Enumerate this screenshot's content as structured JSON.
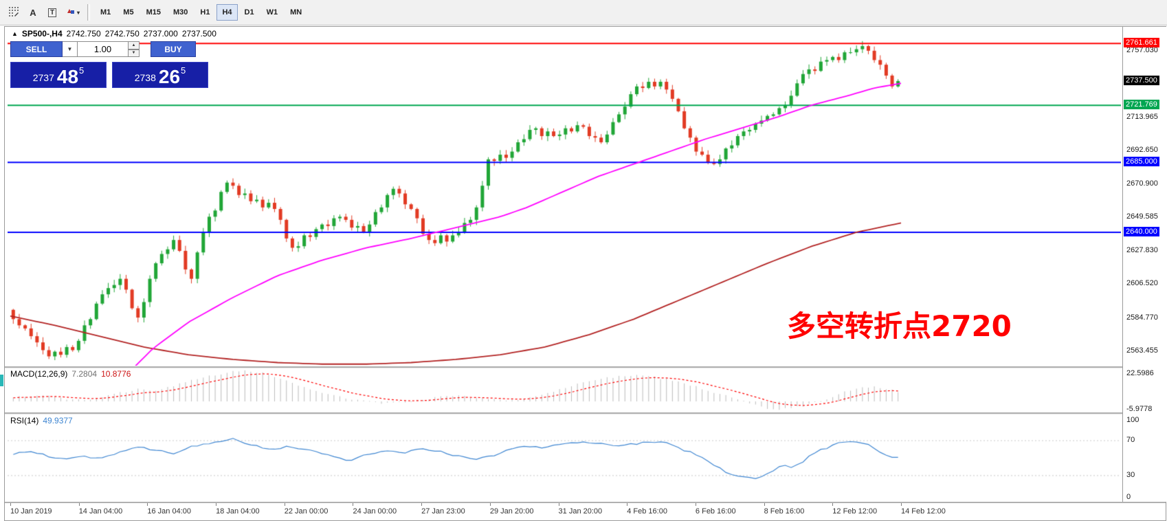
{
  "toolbar": {
    "text_tool_label": "A",
    "label_tool_label": "T",
    "timeframes": [
      "M1",
      "M5",
      "M15",
      "M30",
      "H1",
      "H4",
      "D1",
      "W1",
      "MN"
    ],
    "active_timeframe": "H4"
  },
  "icons": {
    "symbol_marker": "▲",
    "caret_down": "▼",
    "caret_up": "▲",
    "arrows_caret": "▾"
  },
  "symbol_bar": {
    "symbol": "SP500-,H4",
    "open": "2742.750",
    "high": "2742.750",
    "low": "2737.000",
    "close": "2737.500"
  },
  "trade_panel": {
    "sell_label": "SELL",
    "buy_label": "BUY",
    "lot_value": "1.00",
    "bid": {
      "prefix": "2737",
      "big": "48",
      "sup": "5"
    },
    "ask": {
      "prefix": "2738",
      "big": "26",
      "sup": "5"
    }
  },
  "annotation": {
    "text": "多空转折点2720",
    "color": "#ff0000"
  },
  "colors": {
    "candle_up": "#21a637",
    "candle_down": "#e23b24",
    "macd_hist": "#bbbbbb",
    "buy_sell_button": "#3f62cf",
    "price_box": "#171fa6"
  },
  "chart_data": {
    "type": "candlestick",
    "symbol": "SP500-",
    "timeframe": "H4",
    "price_range": [
      2554,
      2772
    ],
    "first_open": 2590,
    "closes": [
      2584,
      2580,
      2578,
      2573,
      2569,
      2564,
      2560,
      2563,
      2561,
      2566,
      2564,
      2570,
      2580,
      2584,
      2594,
      2600,
      2604,
      2606,
      2610,
      2603,
      2591,
      2585,
      2595,
      2610,
      2620,
      2626,
      2629,
      2635,
      2628,
      2616,
      2610,
      2627,
      2640,
      2650,
      2654,
      2666,
      2672,
      2670,
      2664,
      2665,
      2660,
      2661,
      2656,
      2659,
      2655,
      2648,
      2636,
      2630,
      2631,
      2638,
      2637,
      2642,
      2645,
      2644,
      2649,
      2650,
      2648,
      2643,
      2644,
      2640,
      2645,
      2653,
      2656,
      2664,
      2668,
      2665,
      2658,
      2655,
      2649,
      2639,
      2635,
      2633,
      2638,
      2634,
      2638,
      2640,
      2646,
      2648,
      2656,
      2670,
      2687,
      2686,
      2690,
      2688,
      2692,
      2698,
      2700,
      2706,
      2707,
      2702,
      2705,
      2702,
      2703,
      2707,
      2705,
      2709,
      2708,
      2702,
      2701,
      2698,
      2703,
      2711,
      2716,
      2721,
      2729,
      2734,
      2733,
      2737,
      2734,
      2737,
      2732,
      2726,
      2718,
      2707,
      2701,
      2692,
      2690,
      2685,
      2684,
      2687,
      2694,
      2696,
      2702,
      2705,
      2706,
      2710,
      2712,
      2715,
      2716,
      2720,
      2722,
      2728,
      2736,
      2742,
      2745,
      2744,
      2750,
      2751,
      2753,
      2751,
      2756,
      2756,
      2758,
      2760,
      2757,
      2751,
      2748,
      2741,
      2734,
      2737.5
    ],
    "price_axis_ticks": [
      "2757.030",
      "2713.965",
      "2692.650",
      "2670.900",
      "2649.585",
      "2627.830",
      "2606.520",
      "2584.770",
      "2563.455"
    ],
    "hlines": [
      {
        "value": 2761.661,
        "label": "2761.661",
        "color": "#ff0000"
      },
      {
        "value": 2721.769,
        "label": "2721.769",
        "color": "#00a651"
      },
      {
        "value": 2685.0,
        "label": "2685.000",
        "color": "#0000ff"
      },
      {
        "value": 2640.0,
        "label": "2640.000",
        "color": "#0000ff"
      }
    ],
    "current_price": {
      "value": 2737.5,
      "label": "2737.500",
      "color": "#000000"
    },
    "ma_fast": {
      "color": "#ff00ff",
      "points": [
        [
          0.12,
          2542
        ],
        [
          0.16,
          2565
        ],
        [
          0.2,
          2582
        ],
        [
          0.25,
          2598
        ],
        [
          0.3,
          2612
        ],
        [
          0.35,
          2622
        ],
        [
          0.4,
          2630
        ],
        [
          0.45,
          2636
        ],
        [
          0.5,
          2643
        ],
        [
          0.55,
          2650
        ],
        [
          0.58,
          2656
        ],
        [
          0.62,
          2666
        ],
        [
          0.66,
          2676
        ],
        [
          0.7,
          2684
        ],
        [
          0.74,
          2692
        ],
        [
          0.78,
          2700
        ],
        [
          0.82,
          2707
        ],
        [
          0.86,
          2714
        ],
        [
          0.9,
          2722
        ],
        [
          0.94,
          2728
        ],
        [
          0.97,
          2733
        ],
        [
          1,
          2736
        ]
      ]
    },
    "ma_slow": {
      "color": "#b22222",
      "points": [
        [
          0,
          2586
        ],
        [
          0.05,
          2580
        ],
        [
          0.1,
          2573
        ],
        [
          0.15,
          2566
        ],
        [
          0.2,
          2561
        ],
        [
          0.25,
          2558
        ],
        [
          0.3,
          2556
        ],
        [
          0.35,
          2555
        ],
        [
          0.4,
          2555
        ],
        [
          0.45,
          2556
        ],
        [
          0.5,
          2558
        ],
        [
          0.55,
          2561
        ],
        [
          0.6,
          2566
        ],
        [
          0.65,
          2574
        ],
        [
          0.7,
          2584
        ],
        [
          0.75,
          2596
        ],
        [
          0.8,
          2608
        ],
        [
          0.85,
          2620
        ],
        [
          0.9,
          2631
        ],
        [
          0.95,
          2640
        ],
        [
          1,
          2646
        ]
      ]
    },
    "time_axis": [
      "10 Jan 2019",
      "14 Jan 04:00",
      "16 Jan 04:00",
      "18 Jan 04:00",
      "22 Jan 00:00",
      "24 Jan 00:00",
      "27 Jan 23:00",
      "29 Jan 20:00",
      "31 Jan 20:00",
      "4 Feb 16:00",
      "6 Feb 16:00",
      "8 Feb 16:00",
      "12 Feb 12:00",
      "14 Feb 12:00"
    ],
    "macd": {
      "label": "MACD(12,26,9)",
      "value_main": "7.2804",
      "value_signal": "10.8776",
      "axis": [
        "22.5986",
        "-5.9778"
      ],
      "range": [
        -8,
        24
      ],
      "signal_color": "#ff0000",
      "points": [
        [
          0,
          3
        ],
        [
          0.02,
          4
        ],
        [
          0.04,
          3.5
        ],
        [
          0.06,
          2
        ],
        [
          0.08,
          1
        ],
        [
          0.1,
          3
        ],
        [
          0.12,
          6
        ],
        [
          0.14,
          9
        ],
        [
          0.16,
          8
        ],
        [
          0.18,
          11
        ],
        [
          0.2,
          15
        ],
        [
          0.22,
          18
        ],
        [
          0.24,
          21
        ],
        [
          0.26,
          22.6
        ],
        [
          0.28,
          21
        ],
        [
          0.3,
          17
        ],
        [
          0.32,
          12
        ],
        [
          0.34,
          8
        ],
        [
          0.36,
          5
        ],
        [
          0.38,
          2
        ],
        [
          0.4,
          0
        ],
        [
          0.42,
          -1.5
        ],
        [
          0.44,
          -1
        ],
        [
          0.46,
          1
        ],
        [
          0.48,
          3
        ],
        [
          0.5,
          4
        ],
        [
          0.52,
          3
        ],
        [
          0.54,
          1.5
        ],
        [
          0.56,
          1
        ],
        [
          0.58,
          2
        ],
        [
          0.6,
          5
        ],
        [
          0.62,
          9
        ],
        [
          0.64,
          13
        ],
        [
          0.66,
          16
        ],
        [
          0.68,
          18
        ],
        [
          0.7,
          19
        ],
        [
          0.72,
          18
        ],
        [
          0.74,
          16
        ],
        [
          0.76,
          13
        ],
        [
          0.78,
          9
        ],
        [
          0.8,
          5
        ],
        [
          0.82,
          1
        ],
        [
          0.84,
          -3
        ],
        [
          0.86,
          -6
        ],
        [
          0.88,
          -5
        ],
        [
          0.9,
          -2
        ],
        [
          0.92,
          2
        ],
        [
          0.94,
          7
        ],
        [
          0.96,
          11
        ],
        [
          0.98,
          10
        ],
        [
          1,
          7.28
        ]
      ]
    },
    "rsi": {
      "label": "RSI(14)",
      "value": "49.9377",
      "axis": [
        "100",
        "70",
        "30",
        "0"
      ],
      "levels": [
        70,
        30
      ],
      "range": [
        0,
        100
      ],
      "color": "#3d85d1",
      "points": [
        [
          0,
          55
        ],
        [
          0.02,
          58
        ],
        [
          0.04,
          52
        ],
        [
          0.06,
          48
        ],
        [
          0.08,
          52
        ],
        [
          0.1,
          50
        ],
        [
          0.12,
          57
        ],
        [
          0.14,
          62
        ],
        [
          0.16,
          60
        ],
        [
          0.18,
          55
        ],
        [
          0.2,
          63
        ],
        [
          0.22,
          66
        ],
        [
          0.24,
          70
        ],
        [
          0.25,
          72
        ],
        [
          0.27,
          65
        ],
        [
          0.29,
          60
        ],
        [
          0.31,
          63
        ],
        [
          0.33,
          60
        ],
        [
          0.35,
          55
        ],
        [
          0.37,
          50
        ],
        [
          0.38,
          47
        ],
        [
          0.4,
          55
        ],
        [
          0.42,
          58
        ],
        [
          0.44,
          56
        ],
        [
          0.46,
          60
        ],
        [
          0.48,
          58
        ],
        [
          0.5,
          53
        ],
        [
          0.52,
          48
        ],
        [
          0.54,
          52
        ],
        [
          0.56,
          60
        ],
        [
          0.58,
          64
        ],
        [
          0.6,
          62
        ],
        [
          0.62,
          66
        ],
        [
          0.64,
          68
        ],
        [
          0.66,
          67
        ],
        [
          0.68,
          64
        ],
        [
          0.7,
          66
        ],
        [
          0.72,
          69
        ],
        [
          0.74,
          67
        ],
        [
          0.75,
          62
        ],
        [
          0.77,
          55
        ],
        [
          0.79,
          44
        ],
        [
          0.8,
          37
        ],
        [
          0.81,
          32
        ],
        [
          0.82,
          30
        ],
        [
          0.83,
          27
        ],
        [
          0.84,
          26
        ],
        [
          0.85,
          30
        ],
        [
          0.86,
          36
        ],
        [
          0.87,
          42
        ],
        [
          0.88,
          40
        ],
        [
          0.89,
          44
        ],
        [
          0.9,
          52
        ],
        [
          0.91,
          58
        ],
        [
          0.92,
          62
        ],
        [
          0.93,
          66
        ],
        [
          0.94,
          69
        ],
        [
          0.95,
          70
        ],
        [
          0.96,
          67
        ],
        [
          0.97,
          64
        ],
        [
          0.98,
          57
        ],
        [
          0.99,
          53
        ],
        [
          1,
          50
        ]
      ]
    }
  }
}
